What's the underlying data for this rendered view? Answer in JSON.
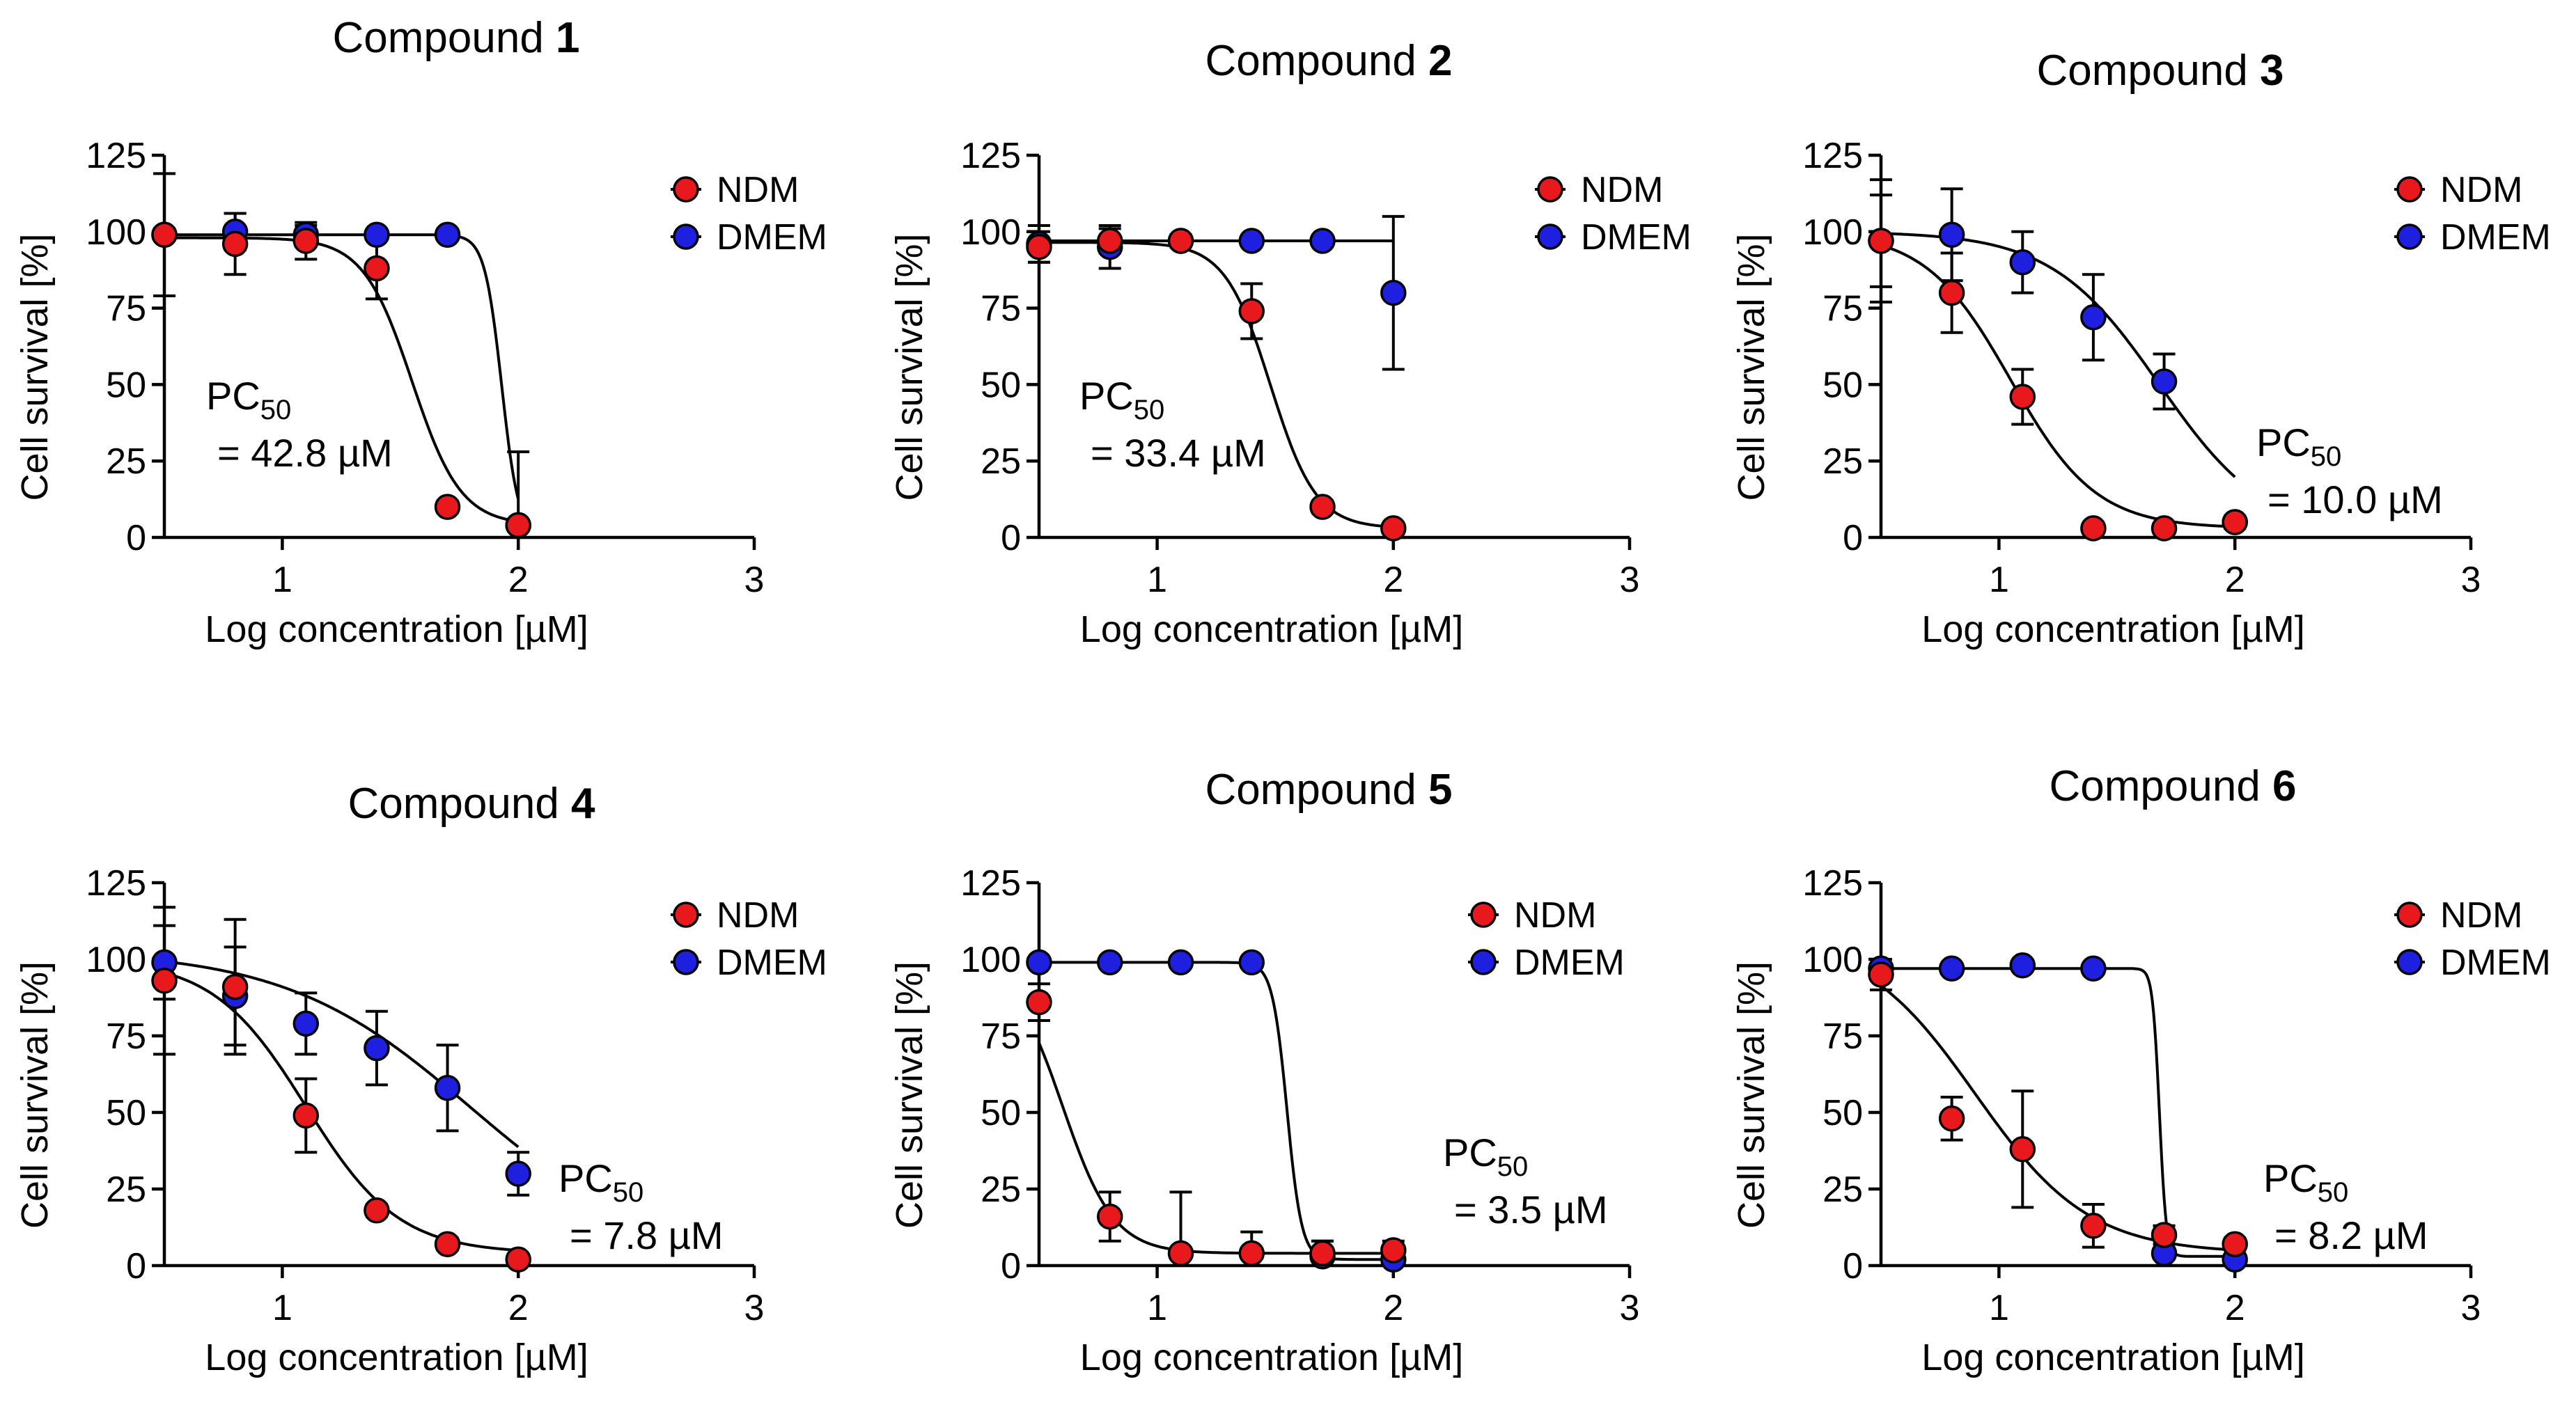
{
  "chart_data": [
    {
      "type": "scatter",
      "title_prefix": "Compound ",
      "title_number": "1",
      "xlabel": "Log concentration [µM]",
      "ylabel": "Cell survival [%]",
      "xlim": [
        0.5,
        3
      ],
      "ylim": [
        0,
        125
      ],
      "xticks": [
        "1",
        "2",
        "3"
      ],
      "yticks": [
        "0",
        "25",
        "50",
        "75",
        "100",
        "125"
      ],
      "legend_position": "top-right",
      "annotation": {
        "prefix": "PC",
        "subscript": "50",
        "value": "= 42.8 µM"
      },
      "series": [
        {
          "name": "NDM",
          "color": "#e8191c",
          "x": [
            0.5,
            0.8,
            1.1,
            1.4,
            1.7,
            2.0
          ],
          "y": [
            99,
            96,
            97,
            88,
            10,
            4
          ],
          "err": [
            20,
            10,
            6,
            10,
            2,
            1
          ],
          "fit": {
            "top": 98,
            "bottom": 4,
            "logEC50": 1.55,
            "hill": 4.2
          }
        },
        {
          "name": "DMEM",
          "color": "#1f1fe0",
          "x": [
            0.5,
            0.8,
            1.1,
            1.4,
            1.7,
            2.0
          ],
          "y": [
            99,
            100,
            99,
            99,
            99,
            4
          ],
          "err": [
            2,
            6,
            3,
            1,
            1,
            24
          ],
          "fit": {
            "top": 99,
            "bottom": 0,
            "logEC50": 1.93,
            "hill": 12
          }
        }
      ]
    },
    {
      "type": "scatter",
      "title_prefix": "Compound ",
      "title_number": "2",
      "xlabel": "Log concentration [µM]",
      "ylabel": "Cell survival [%]",
      "xlim": [
        0.5,
        3
      ],
      "ylim": [
        0,
        125
      ],
      "xticks": [
        "1",
        "2",
        "3"
      ],
      "yticks": [
        "0",
        "25",
        "50",
        "75",
        "100",
        "125"
      ],
      "legend_position": "top-right",
      "annotation": {
        "prefix": "PC",
        "subscript": "50",
        "value": "= 33.4 µM"
      },
      "series": [
        {
          "name": "NDM",
          "color": "#e8191c",
          "x": [
            0.5,
            0.8,
            1.1,
            1.4,
            1.7,
            2.0
          ],
          "y": [
            95,
            97,
            97,
            74,
            10,
            3
          ],
          "err": [
            5,
            4,
            2,
            9,
            2,
            1
          ],
          "fit": {
            "top": 96.5,
            "bottom": 3,
            "logEC50": 1.48,
            "hill": 4.5
          }
        },
        {
          "name": "DMEM",
          "color": "#1f1fe0",
          "x": [
            0.5,
            0.8,
            1.1,
            1.4,
            1.7,
            2.0
          ],
          "y": [
            96,
            95,
            97,
            97,
            97,
            80
          ],
          "err": [
            6,
            7,
            2,
            1,
            1,
            25
          ],
          "fit": {
            "top": 97,
            "bottom": 97,
            "logEC50": 2.5,
            "hill": 1
          }
        }
      ]
    },
    {
      "type": "scatter",
      "title_prefix": "Compound ",
      "title_number": "3",
      "xlabel": "Log concentration [µM]",
      "ylabel": "Cell survival [%]",
      "xlim": [
        0.5,
        3
      ],
      "ylim": [
        0,
        125
      ],
      "xticks": [
        "1",
        "2",
        "3"
      ],
      "yticks": [
        "0",
        "25",
        "50",
        "75",
        "100",
        "125"
      ],
      "legend_position": "top-right",
      "annotation": {
        "prefix": "PC",
        "subscript": "50",
        "value": "= 10.0 µM"
      },
      "series": [
        {
          "name": "NDM",
          "color": "#e8191c",
          "x": [
            0.5,
            0.8,
            1.1,
            1.4,
            1.7,
            2.0
          ],
          "y": [
            97,
            80,
            46,
            3,
            3,
            5
          ],
          "err": [
            15,
            13,
            9,
            1,
            1,
            1
          ],
          "fit": {
            "top": 100,
            "bottom": 3,
            "logEC50": 1.05,
            "hill": 2.4
          }
        },
        {
          "name": "DMEM",
          "color": "#1f1fe0",
          "x": [
            0.5,
            0.8,
            1.1,
            1.4,
            1.7,
            2.0
          ],
          "y": [
            97,
            99,
            90,
            72,
            51,
            5
          ],
          "err": [
            20,
            15,
            10,
            14,
            9,
            2
          ],
          "fit": {
            "top": 100,
            "bottom": 0,
            "logEC50": 1.68,
            "hill": 1.9
          }
        }
      ]
    },
    {
      "type": "scatter",
      "title_prefix": "Compound ",
      "title_number": "4",
      "xlabel": "Log concentration [µM]",
      "ylabel": "Cell survival [%]",
      "xlim": [
        0.5,
        3
      ],
      "ylim": [
        0,
        125
      ],
      "xticks": [
        "1",
        "2",
        "3"
      ],
      "yticks": [
        "0",
        "25",
        "50",
        "75",
        "100",
        "125"
      ],
      "legend_position": "top-right",
      "annotation": {
        "prefix": "PC",
        "subscript": "50",
        "value": "= 7.8 µM"
      },
      "series": [
        {
          "name": "NDM",
          "color": "#e8191c",
          "x": [
            0.5,
            0.8,
            1.1,
            1.4,
            1.7,
            2.0
          ],
          "y": [
            93,
            91,
            49,
            18,
            7,
            2
          ],
          "err": [
            24,
            22,
            12,
            2,
            2,
            1
          ],
          "fit": {
            "top": 100,
            "bottom": 4,
            "logEC50": 1.1,
            "hill": 2.2
          }
        },
        {
          "name": "DMEM",
          "color": "#1f1fe0",
          "x": [
            0.5,
            0.8,
            1.1,
            1.4,
            1.7,
            2.0
          ],
          "y": [
            99,
            88,
            79,
            71,
            58,
            30
          ],
          "err": [
            12,
            16,
            10,
            12,
            14,
            7
          ],
          "fit": {
            "top": 103,
            "bottom": 0,
            "logEC50": 1.8,
            "hill": 1.1
          }
        }
      ]
    },
    {
      "type": "scatter",
      "title_prefix": "Compound ",
      "title_number": "5",
      "xlabel": "Log concentration [µM]",
      "ylabel": "Cell survival [%]",
      "xlim": [
        0.5,
        3
      ],
      "ylim": [
        0,
        125
      ],
      "xticks": [
        "1",
        "2",
        "3"
      ],
      "yticks": [
        "0",
        "25",
        "50",
        "75",
        "100",
        "125"
      ],
      "legend_position": "top-right",
      "annotation": {
        "prefix": "PC",
        "subscript": "50",
        "value": "= 3.5 µM"
      },
      "series": [
        {
          "name": "NDM",
          "color": "#e8191c",
          "x": [
            0.5,
            0.8,
            1.1,
            1.4,
            1.7,
            2.0
          ],
          "y": [
            86,
            16,
            4,
            4,
            4,
            5
          ],
          "err": [
            6,
            8,
            20,
            7,
            4,
            3
          ],
          "fit": {
            "top": 100,
            "bottom": 4,
            "logEC50": 0.6,
            "hill": 4
          }
        },
        {
          "name": "DMEM",
          "color": "#1f1fe0",
          "x": [
            0.5,
            0.8,
            1.1,
            1.4,
            1.7,
            2.0
          ],
          "y": [
            99,
            99,
            99,
            99,
            3,
            2
          ],
          "err": [
            1,
            1,
            1,
            1,
            5,
            2
          ],
          "fit": {
            "top": 99,
            "bottom": 2,
            "logEC50": 1.55,
            "hill": 14
          }
        }
      ]
    },
    {
      "type": "scatter",
      "title_prefix": "Compound ",
      "title_number": "6",
      "xlabel": "Log concentration [µM]",
      "ylabel": "Cell survival [%]",
      "xlim": [
        0.5,
        3
      ],
      "ylim": [
        0,
        125
      ],
      "xticks": [
        "1",
        "2",
        "3"
      ],
      "yticks": [
        "0",
        "25",
        "50",
        "75",
        "100",
        "125"
      ],
      "legend_position": "top-right",
      "annotation": {
        "prefix": "PC",
        "subscript": "50",
        "value": "= 8.2 µM"
      },
      "series": [
        {
          "name": "NDM",
          "color": "#e8191c",
          "x": [
            0.5,
            0.8,
            1.1,
            1.4,
            1.7,
            2.0
          ],
          "y": [
            95,
            48,
            38,
            13,
            10,
            7
          ],
          "err": [
            5,
            7,
            19,
            7,
            3,
            2
          ],
          "fit": {
            "top": 108,
            "bottom": 4,
            "logEC50": 0.9,
            "hill": 1.8
          }
        },
        {
          "name": "DMEM",
          "color": "#1f1fe0",
          "x": [
            0.5,
            0.8,
            1.1,
            1.4,
            1.7,
            2.0
          ],
          "y": [
            97,
            97,
            98,
            97,
            4,
            2
          ],
          "err": [
            1,
            1,
            1,
            1,
            1,
            1
          ],
          "fit": {
            "top": 97,
            "bottom": 3,
            "logEC50": 1.68,
            "hill": 30
          }
        }
      ]
    }
  ]
}
